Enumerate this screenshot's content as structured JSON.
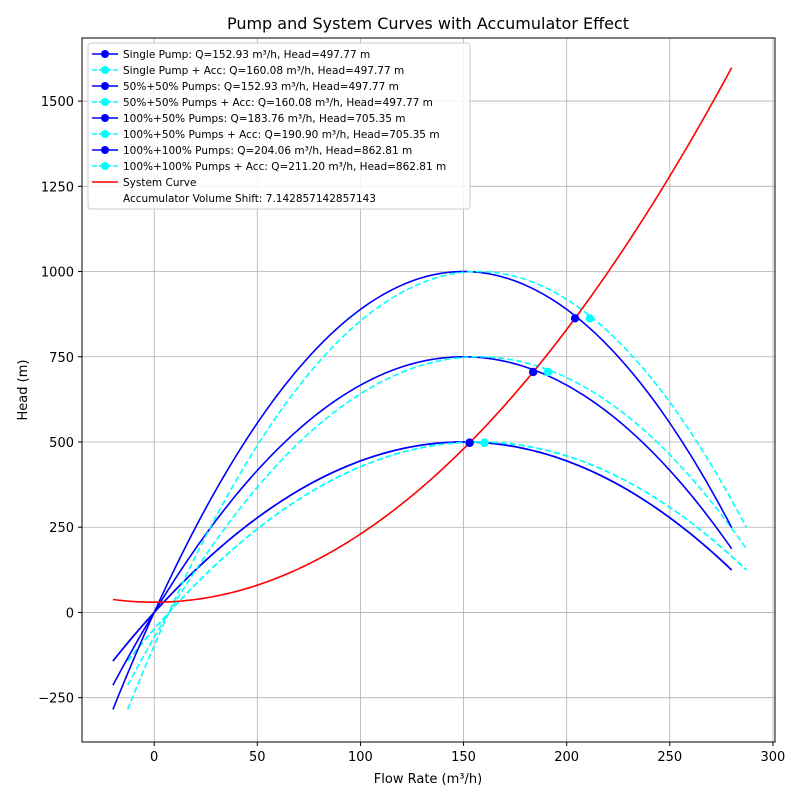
{
  "chart_data": {
    "type": "line",
    "title": "Pump and System Curves with Accumulator Effect",
    "xlabel": "Flow Rate (m³/h)",
    "ylabel": "Head (m)",
    "xlim": [
      -35,
      301
    ],
    "ylim": [
      -380,
      1685
    ],
    "xticks": [
      0,
      50,
      100,
      150,
      200,
      250,
      300
    ],
    "yticks": [
      -250,
      0,
      250,
      500,
      750,
      1000,
      1250,
      1500
    ],
    "grid": true,
    "legend_position": "top-left",
    "accumulator_shift": 7.142857142857143,
    "colors": {
      "pump": "#0000ff",
      "pump_acc": "#00ffff",
      "system": "#ff0000",
      "grid": "#b0b0b0"
    },
    "pump_curves": [
      {
        "label": "Single Pump",
        "max_head": 500,
        "q_min": -20,
        "q_max": 280
      },
      {
        "label": "50%+50% Pumps",
        "max_head": 500,
        "q_min": -20,
        "q_max": 280
      },
      {
        "label": "100%+50% Pumps",
        "max_head": 750,
        "q_min": -20,
        "q_max": 280
      },
      {
        "label": "100%+100% Pumps",
        "max_head": 1000,
        "q_min": -20,
        "q_max": 280
      }
    ],
    "system_curve": {
      "label": "System Curve",
      "static_head": 30,
      "coefficient": 0.02,
      "q_min": -20,
      "q_max": 280
    },
    "series": [
      {
        "name": "Single Pump: Q=152.93 m³/h, Head=497.77 m",
        "style": "pump",
        "point": [
          152.93,
          497.77
        ]
      },
      {
        "name": "Single Pump + Acc: Q=160.08 m³/h, Head=497.77 m",
        "style": "pump_acc",
        "point": [
          160.08,
          497.77
        ]
      },
      {
        "name": "50%+50% Pumps: Q=152.93 m³/h, Head=497.77 m",
        "style": "pump",
        "point": [
          152.93,
          497.77
        ]
      },
      {
        "name": "50%+50% Pumps + Acc: Q=160.08 m³/h, Head=497.77 m",
        "style": "pump_acc",
        "point": [
          160.08,
          497.77
        ]
      },
      {
        "name": "100%+50% Pumps: Q=183.76 m³/h, Head=705.35 m",
        "style": "pump",
        "point": [
          183.76,
          705.35
        ]
      },
      {
        "name": "100%+50% Pumps + Acc: Q=190.90 m³/h, Head=705.35 m",
        "style": "pump_acc",
        "point": [
          190.9,
          705.35
        ]
      },
      {
        "name": "100%+100% Pumps: Q=204.06 m³/h, Head=862.81 m",
        "style": "pump",
        "point": [
          204.06,
          862.81
        ]
      },
      {
        "name": "100%+100% Pumps + Acc: Q=211.20 m³/h, Head=862.81 m",
        "style": "pump_acc",
        "point": [
          211.2,
          862.81
        ]
      },
      {
        "name": "System Curve",
        "style": "system"
      }
    ],
    "legend_extra": "Accumulator Volume Shift: 7.142857142857143"
  }
}
